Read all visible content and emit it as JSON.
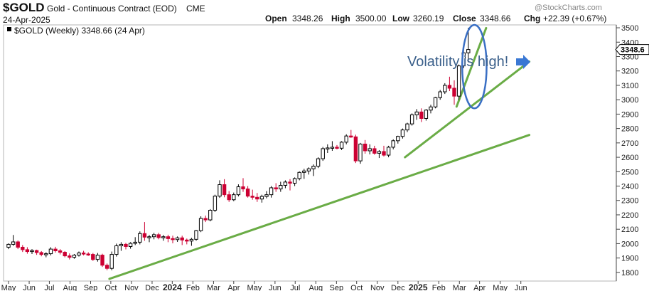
{
  "header": {
    "symbol": "$GOLD",
    "name": "Gold - Continuous Contract (EOD)",
    "exchange": "CME",
    "date": "24-Apr-2025",
    "open_label": "Open",
    "open": "3348.26",
    "high_label": "High",
    "high": "3500.00",
    "low_label": "Low",
    "low": "3260.19",
    "close_label": "Close",
    "close": "3348.66",
    "chg_label": "Chg",
    "chg": "+22.39 (+0.67%)",
    "watermark": "@StockCharts.com",
    "legend": "$GOLD (Weekly) 3348.66 (24 Apr)"
  },
  "colors": {
    "up": "#000000",
    "down": "#cc0033",
    "trend": "#6aac46",
    "ellipse": "#3a6fc4",
    "annotation": "#3a5f8a"
  },
  "chart_data": {
    "type": "candlestick",
    "symbol": "$GOLD",
    "period": "weekly",
    "price_tag": "3348.6",
    "ylim": [
      1740,
      3520
    ],
    "yticks": [
      1800,
      1900,
      2000,
      2100,
      2200,
      2300,
      2400,
      2500,
      2600,
      2700,
      2800,
      2900,
      3000,
      3100,
      3200,
      3300,
      3400,
      3500
    ],
    "xticks": [
      {
        "label": "May",
        "bold": false,
        "i": 0
      },
      {
        "label": "Jun",
        "bold": false,
        "i": 4.4
      },
      {
        "label": "Jul",
        "bold": false,
        "i": 8.7
      },
      {
        "label": "Aug",
        "bold": false,
        "i": 13.1
      },
      {
        "label": "Sep",
        "bold": false,
        "i": 17.5
      },
      {
        "label": "Oct",
        "bold": false,
        "i": 21.8
      },
      {
        "label": "Nov",
        "bold": false,
        "i": 26.2
      },
      {
        "label": "Dec",
        "bold": false,
        "i": 30.6
      },
      {
        "label": "2024",
        "bold": true,
        "i": 34.9
      },
      {
        "label": "Feb",
        "bold": false,
        "i": 39.3
      },
      {
        "label": "Mar",
        "bold": false,
        "i": 43.7
      },
      {
        "label": "Apr",
        "bold": false,
        "i": 48.0
      },
      {
        "label": "May",
        "bold": false,
        "i": 52.4
      },
      {
        "label": "Jun",
        "bold": false,
        "i": 56.8
      },
      {
        "label": "Jul",
        "bold": false,
        "i": 61.1
      },
      {
        "label": "Aug",
        "bold": false,
        "i": 65.5
      },
      {
        "label": "Sep",
        "bold": false,
        "i": 69.9
      },
      {
        "label": "Oct",
        "bold": false,
        "i": 74.2
      },
      {
        "label": "Nov",
        "bold": false,
        "i": 78.6
      },
      {
        "label": "Dec",
        "bold": false,
        "i": 83.0
      },
      {
        "label": "2025",
        "bold": true,
        "i": 87.3
      },
      {
        "label": "Feb",
        "bold": false,
        "i": 91.7
      },
      {
        "label": "Mar",
        "bold": false,
        "i": 96.1
      },
      {
        "label": "Apr",
        "bold": false,
        "i": 100.4
      },
      {
        "label": "May",
        "bold": false,
        "i": 104.8
      },
      {
        "label": "Jun",
        "bold": false,
        "i": 109.2
      }
    ],
    "ohlc": [
      [
        1975,
        2002,
        1962,
        1995
      ],
      [
        1995,
        2060,
        1985,
        2012
      ],
      [
        2012,
        2022,
        1962,
        1975
      ],
      [
        1975,
        1990,
        1942,
        1958
      ],
      [
        1958,
        1975,
        1930,
        1945
      ],
      [
        1945,
        1962,
        1928,
        1952
      ],
      [
        1952,
        1958,
        1922,
        1938
      ],
      [
        1938,
        1948,
        1912,
        1925
      ],
      [
        1925,
        1940,
        1905,
        1930
      ],
      [
        1930,
        1975,
        1918,
        1962
      ],
      [
        1962,
        1978,
        1938,
        1950
      ],
      [
        1950,
        1962,
        1925,
        1940
      ],
      [
        1940,
        1948,
        1905,
        1915
      ],
      [
        1915,
        1932,
        1890,
        1905
      ],
      [
        1905,
        1928,
        1895,
        1920
      ],
      [
        1920,
        1945,
        1910,
        1935
      ],
      [
        1935,
        1950,
        1918,
        1928
      ],
      [
        1928,
        1940,
        1915,
        1925
      ],
      [
        1925,
        1935,
        1880,
        1890
      ],
      [
        1890,
        1935,
        1875,
        1920
      ],
      [
        1920,
        1930,
        1838,
        1850
      ],
      [
        1850,
        1862,
        1815,
        1828
      ],
      [
        1828,
        1945,
        1815,
        1925
      ],
      [
        1925,
        2000,
        1910,
        1985
      ],
      [
        1985,
        2010,
        1950,
        1995
      ],
      [
        1995,
        2005,
        1960,
        1980
      ],
      [
        1980,
        2010,
        1965,
        2002
      ],
      [
        2002,
        2045,
        1990,
        2010
      ],
      [
        2010,
        2085,
        1995,
        2070
      ],
      [
        2070,
        2150,
        2020,
        2045
      ],
      [
        2045,
        2060,
        2010,
        2048
      ],
      [
        2048,
        2075,
        2030,
        2062
      ],
      [
        2062,
        2075,
        2030,
        2042
      ],
      [
        2042,
        2060,
        2020,
        2048
      ],
      [
        2048,
        2062,
        2010,
        2035
      ],
      [
        2035,
        2055,
        2002,
        2028
      ],
      [
        2028,
        2050,
        2012,
        2040
      ],
      [
        2040,
        2055,
        1990,
        2025
      ],
      [
        2025,
        2035,
        1995,
        2018
      ],
      [
        2018,
        2040,
        1985,
        2030
      ],
      [
        2030,
        2095,
        2020,
        2090
      ],
      [
        2090,
        2190,
        2080,
        2175
      ],
      [
        2175,
        2195,
        2150,
        2165
      ],
      [
        2165,
        2240,
        2155,
        2232
      ],
      [
        2232,
        2340,
        2220,
        2330
      ],
      [
        2330,
        2440,
        2318,
        2410
      ],
      [
        2410,
        2448,
        2322,
        2340
      ],
      [
        2340,
        2365,
        2290,
        2305
      ],
      [
        2305,
        2355,
        2295,
        2340
      ],
      [
        2340,
        2412,
        2328,
        2395
      ],
      [
        2395,
        2455,
        2360,
        2380
      ],
      [
        2380,
        2400,
        2320,
        2330
      ],
      [
        2330,
        2375,
        2305,
        2322
      ],
      [
        2322,
        2352,
        2290,
        2310
      ],
      [
        2310,
        2340,
        2285,
        2328
      ],
      [
        2328,
        2365,
        2315,
        2340
      ],
      [
        2340,
        2400,
        2320,
        2388
      ],
      [
        2388,
        2420,
        2360,
        2380
      ],
      [
        2380,
        2430,
        2360,
        2405
      ],
      [
        2405,
        2440,
        2385,
        2428
      ],
      [
        2428,
        2448,
        2370,
        2420
      ],
      [
        2420,
        2460,
        2400,
        2452
      ],
      [
        2452,
        2502,
        2440,
        2495
      ],
      [
        2495,
        2520,
        2450,
        2505
      ],
      [
        2505,
        2530,
        2480,
        2520
      ],
      [
        2520,
        2550,
        2470,
        2538
      ],
      [
        2538,
        2600,
        2525,
        2590
      ],
      [
        2590,
        2672,
        2575,
        2660
      ],
      [
        2660,
        2690,
        2630,
        2665
      ],
      [
        2665,
        2712,
        2645,
        2670
      ],
      [
        2670,
        2685,
        2655,
        2663
      ],
      [
        2663,
        2712,
        2650,
        2705
      ],
      [
        2705,
        2760,
        2690,
        2748
      ],
      [
        2748,
        2790,
        2735,
        2742
      ],
      [
        2742,
        2757,
        2560,
        2575
      ],
      [
        2575,
        2700,
        2555,
        2692
      ],
      [
        2692,
        2720,
        2625,
        2645
      ],
      [
        2645,
        2690,
        2620,
        2660
      ],
      [
        2660,
        2680,
        2618,
        2628
      ],
      [
        2628,
        2650,
        2595,
        2640
      ],
      [
        2640,
        2680,
        2605,
        2615
      ],
      [
        2615,
        2680,
        2600,
        2670
      ],
      [
        2670,
        2725,
        2655,
        2715
      ],
      [
        2715,
        2750,
        2695,
        2745
      ],
      [
        2745,
        2800,
        2730,
        2790
      ],
      [
        2790,
        2840,
        2775,
        2832
      ],
      [
        2832,
        2905,
        2820,
        2895
      ],
      [
        2895,
        2935,
        2860,
        2915
      ],
      [
        2915,
        2940,
        2845,
        2870
      ],
      [
        2870,
        2935,
        2855,
        2928
      ],
      [
        2928,
        2965,
        2905,
        2950
      ],
      [
        2950,
        3020,
        2940,
        3015
      ],
      [
        3015,
        3068,
        3000,
        3055
      ],
      [
        3055,
        3115,
        3040,
        3100
      ],
      [
        3100,
        3160,
        3060,
        3080
      ],
      [
        3080,
        3135,
        2965,
        3025
      ],
      [
        3025,
        3245,
        3000,
        3235
      ],
      [
        3235,
        3358,
        3220,
        3326
      ],
      [
        3326,
        3500,
        3260,
        3349
      ]
    ],
    "trendlines": [
      {
        "from": [
          21.5,
          1755
        ],
        "to": [
          111,
          2755
        ]
      },
      {
        "from": [
          84.5,
          2600
        ],
        "to": [
          111,
          3265
        ]
      },
      {
        "from": [
          95.5,
          2952
        ],
        "to": [
          101.8,
          3498
        ]
      }
    ],
    "annotation": {
      "text": "Volatility is high!",
      "arrow": "right"
    },
    "ellipse_center": {
      "i": 99.3,
      "price": 3230
    },
    "ellipse_radius": {
      "i": 2.6,
      "price": 290
    }
  }
}
